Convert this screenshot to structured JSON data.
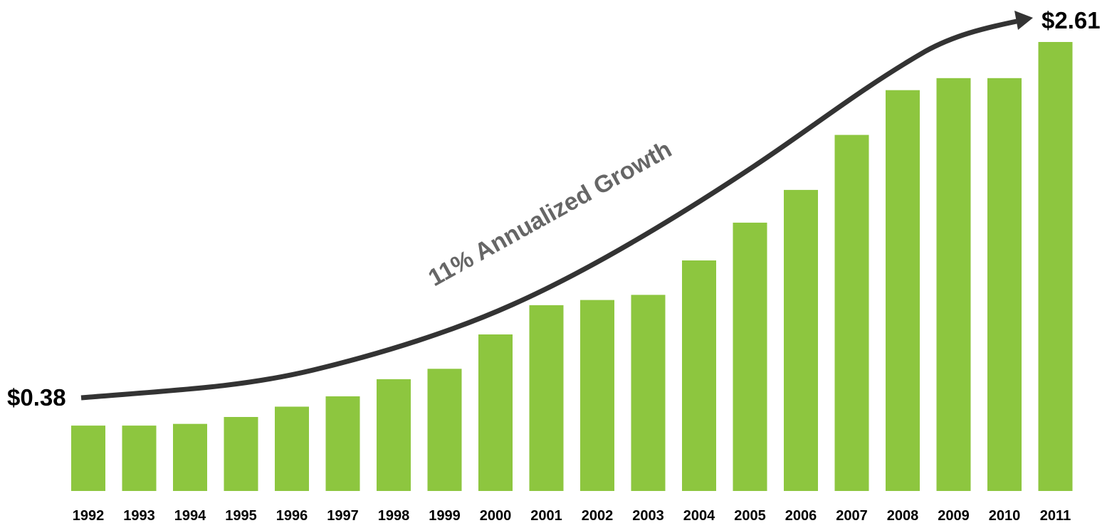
{
  "chart_data": {
    "type": "bar",
    "categories": [
      "1992",
      "1993",
      "1994",
      "1995",
      "1996",
      "1997",
      "1998",
      "1999",
      "2000",
      "2001",
      "2002",
      "2003",
      "2004",
      "2005",
      "2006",
      "2007",
      "2008",
      "2009",
      "2010",
      "2011"
    ],
    "values": [
      0.38,
      0.38,
      0.39,
      0.43,
      0.49,
      0.55,
      0.65,
      0.71,
      0.91,
      1.08,
      1.11,
      1.14,
      1.34,
      1.56,
      1.75,
      2.07,
      2.33,
      2.4,
      2.4,
      2.61
    ],
    "ylim": [
      0,
      2.61
    ],
    "grid": false,
    "bar_color": "#8dc63f",
    "arrow_color": "#333333",
    "annotations": {
      "start_value": "$0.38",
      "end_value": "$2.61",
      "growth": "11% Annualized Growth",
      "growth_color": "#666666"
    }
  }
}
